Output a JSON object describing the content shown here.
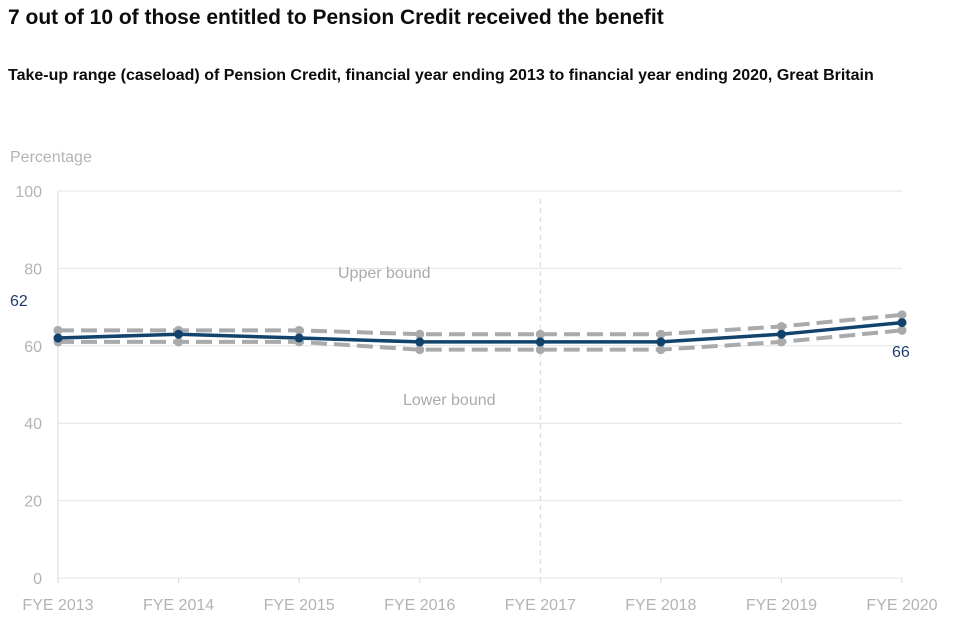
{
  "title": "7 out of 10 of those entitled to Pension Credit received the benefit",
  "subtitle": "Take-up range (caseload) of Pension Credit, financial year ending 2013 to financial year ending 2020, Great Britain",
  "chart_data": {
    "type": "line",
    "ylabel": "Percentage",
    "ylim": [
      0,
      100
    ],
    "yticks": [
      0,
      20,
      40,
      60,
      80,
      100
    ],
    "categories": [
      "FYE 2013",
      "FYE 2014",
      "FYE 2015",
      "FYE 2016",
      "FYE 2017",
      "FYE 2018",
      "FYE 2019",
      "FYE 2020"
    ],
    "series": [
      {
        "key": "upper",
        "name": "Upper bound",
        "values": [
          64,
          64,
          64,
          63,
          63,
          63,
          65,
          68
        ],
        "color": "#a8aaac",
        "dashed": true
      },
      {
        "key": "lower",
        "name": "Lower bound",
        "values": [
          61,
          61,
          61,
          59,
          59,
          59,
          61,
          64
        ],
        "color": "#a8aaac",
        "dashed": true
      },
      {
        "key": "central",
        "values": [
          62,
          63,
          62,
          61,
          61,
          61,
          63,
          66
        ],
        "color": "#12436d",
        "dashed": false
      }
    ],
    "labels": {
      "start": "62",
      "end": "66"
    },
    "reference_line": "FYE 2017",
    "grid": true
  }
}
